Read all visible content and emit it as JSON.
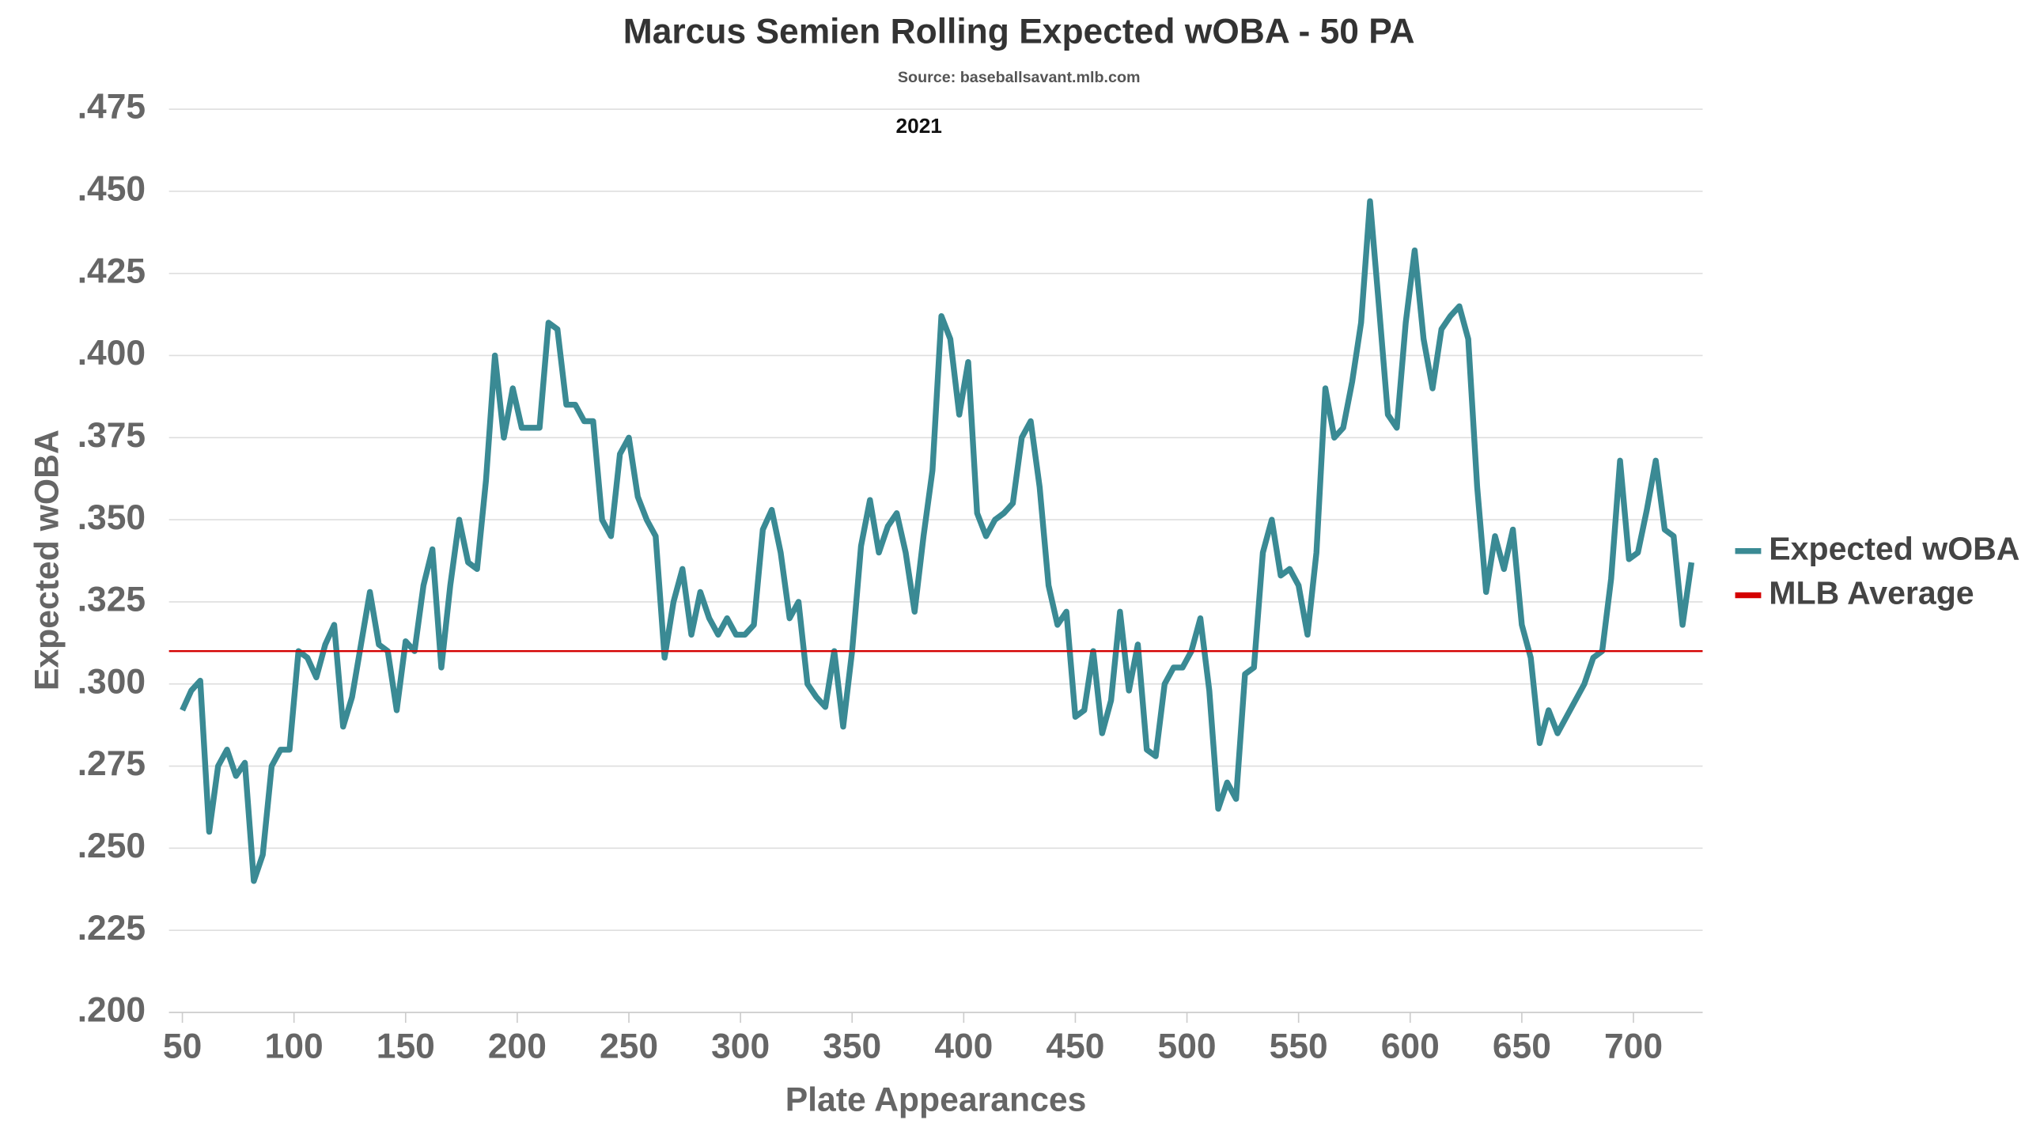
{
  "chart_data": {
    "type": "line",
    "title": "Marcus Semien Rolling Expected wOBA - 50 PA",
    "subtitle": "Source: baseballsavant.mlb.com",
    "annotation": "2021",
    "x_label": "Plate Appearances",
    "y_label": "Expected wOBA",
    "xlim": [
      44,
      731
    ],
    "ylim": [
      0.2,
      0.475
    ],
    "xticks": [
      50,
      100,
      150,
      200,
      250,
      300,
      350,
      400,
      450,
      500,
      550,
      600,
      650,
      700
    ],
    "yticks": [
      {
        "value": 0.2,
        "label": ".200"
      },
      {
        "value": 0.225,
        "label": ".225"
      },
      {
        "value": 0.25,
        "label": ".250"
      },
      {
        "value": 0.275,
        "label": ".275"
      },
      {
        "value": 0.3,
        "label": ".300"
      },
      {
        "value": 0.325,
        "label": ".325"
      },
      {
        "value": 0.35,
        "label": ".350"
      },
      {
        "value": 0.375,
        "label": ".375"
      },
      {
        "value": 0.4,
        "label": ".400"
      },
      {
        "value": 0.425,
        "label": ".425"
      },
      {
        "value": 0.45,
        "label": ".450"
      },
      {
        "value": 0.475,
        "label": ".475"
      }
    ],
    "grid": true,
    "legend": "right",
    "x": [
      50,
      54,
      58,
      62,
      66,
      70,
      74,
      78,
      82,
      86,
      90,
      94,
      98,
      102,
      106,
      110,
      114,
      118,
      122,
      126,
      130,
      134,
      138,
      142,
      146,
      150,
      154,
      158,
      162,
      166,
      170,
      174,
      178,
      182,
      186,
      190,
      194,
      198,
      202,
      206,
      210,
      214,
      218,
      222,
      226,
      230,
      234,
      238,
      242,
      246,
      250,
      254,
      258,
      262,
      266,
      270,
      274,
      278,
      282,
      286,
      290,
      294,
      298,
      302,
      306,
      310,
      314,
      318,
      322,
      326,
      330,
      334,
      338,
      342,
      346,
      350,
      354,
      358,
      362,
      366,
      370,
      374,
      378,
      382,
      386,
      390,
      394,
      398,
      402,
      406,
      410,
      414,
      418,
      422,
      426,
      430,
      434,
      438,
      442,
      446,
      450,
      454,
      458,
      462,
      466,
      470,
      474,
      478,
      482,
      486,
      490,
      494,
      498,
      502,
      506,
      510,
      514,
      518,
      522,
      526,
      530,
      534,
      538,
      542,
      546,
      550,
      554,
      558,
      562,
      566,
      570,
      574,
      578,
      582,
      586,
      590,
      594,
      598,
      602,
      606,
      610,
      614,
      618,
      622,
      626,
      630,
      634,
      638,
      642,
      646,
      650,
      654,
      658,
      662,
      666,
      670,
      674,
      678,
      682,
      686,
      690,
      694,
      698,
      702,
      706,
      710,
      714,
      718,
      722,
      726
    ],
    "series": [
      {
        "name": "Expected wOBA",
        "color": "#3a8a94",
        "values": [
          0.292,
          0.298,
          0.301,
          0.255,
          0.275,
          0.28,
          0.272,
          0.276,
          0.24,
          0.248,
          0.275,
          0.28,
          0.28,
          0.31,
          0.308,
          0.302,
          0.312,
          0.318,
          0.287,
          0.296,
          0.312,
          0.328,
          0.312,
          0.31,
          0.292,
          0.313,
          0.31,
          0.33,
          0.341,
          0.305,
          0.33,
          0.35,
          0.337,
          0.335,
          0.362,
          0.4,
          0.375,
          0.39,
          0.378,
          0.378,
          0.378,
          0.41,
          0.408,
          0.385,
          0.385,
          0.38,
          0.38,
          0.35,
          0.345,
          0.37,
          0.375,
          0.357,
          0.35,
          0.345,
          0.308,
          0.325,
          0.335,
          0.315,
          0.328,
          0.32,
          0.315,
          0.32,
          0.315,
          0.315,
          0.318,
          0.347,
          0.353,
          0.34,
          0.32,
          0.325,
          0.3,
          0.296,
          0.293,
          0.31,
          0.287,
          0.31,
          0.342,
          0.356,
          0.34,
          0.348,
          0.352,
          0.34,
          0.322,
          0.345,
          0.365,
          0.412,
          0.405,
          0.382,
          0.398,
          0.352,
          0.345,
          0.35,
          0.352,
          0.355,
          0.375,
          0.38,
          0.36,
          0.33,
          0.318,
          0.322,
          0.29,
          0.292,
          0.31,
          0.285,
          0.295,
          0.322,
          0.298,
          0.312,
          0.28,
          0.278,
          0.3,
          0.305,
          0.305,
          0.31,
          0.32,
          0.298,
          0.262,
          0.27,
          0.265,
          0.303,
          0.305,
          0.34,
          0.35,
          0.333,
          0.335,
          0.33,
          0.315,
          0.34,
          0.39,
          0.375,
          0.378,
          0.392,
          0.41,
          0.447,
          0.415,
          0.382,
          0.378,
          0.41,
          0.432,
          0.405,
          0.39,
          0.408,
          0.412,
          0.415,
          0.405,
          0.36,
          0.328,
          0.345,
          0.335,
          0.347,
          0.318,
          0.308,
          0.282,
          0.292,
          0.285,
          0.29,
          0.295,
          0.3,
          0.308,
          0.31,
          0.332,
          0.368,
          0.338,
          0.34,
          0.353,
          0.368,
          0.347,
          0.345,
          0.318,
          0.337
        ]
      }
    ],
    "reference_line": {
      "name": "MLB Average",
      "value": 0.31,
      "color": "#d40000"
    }
  }
}
